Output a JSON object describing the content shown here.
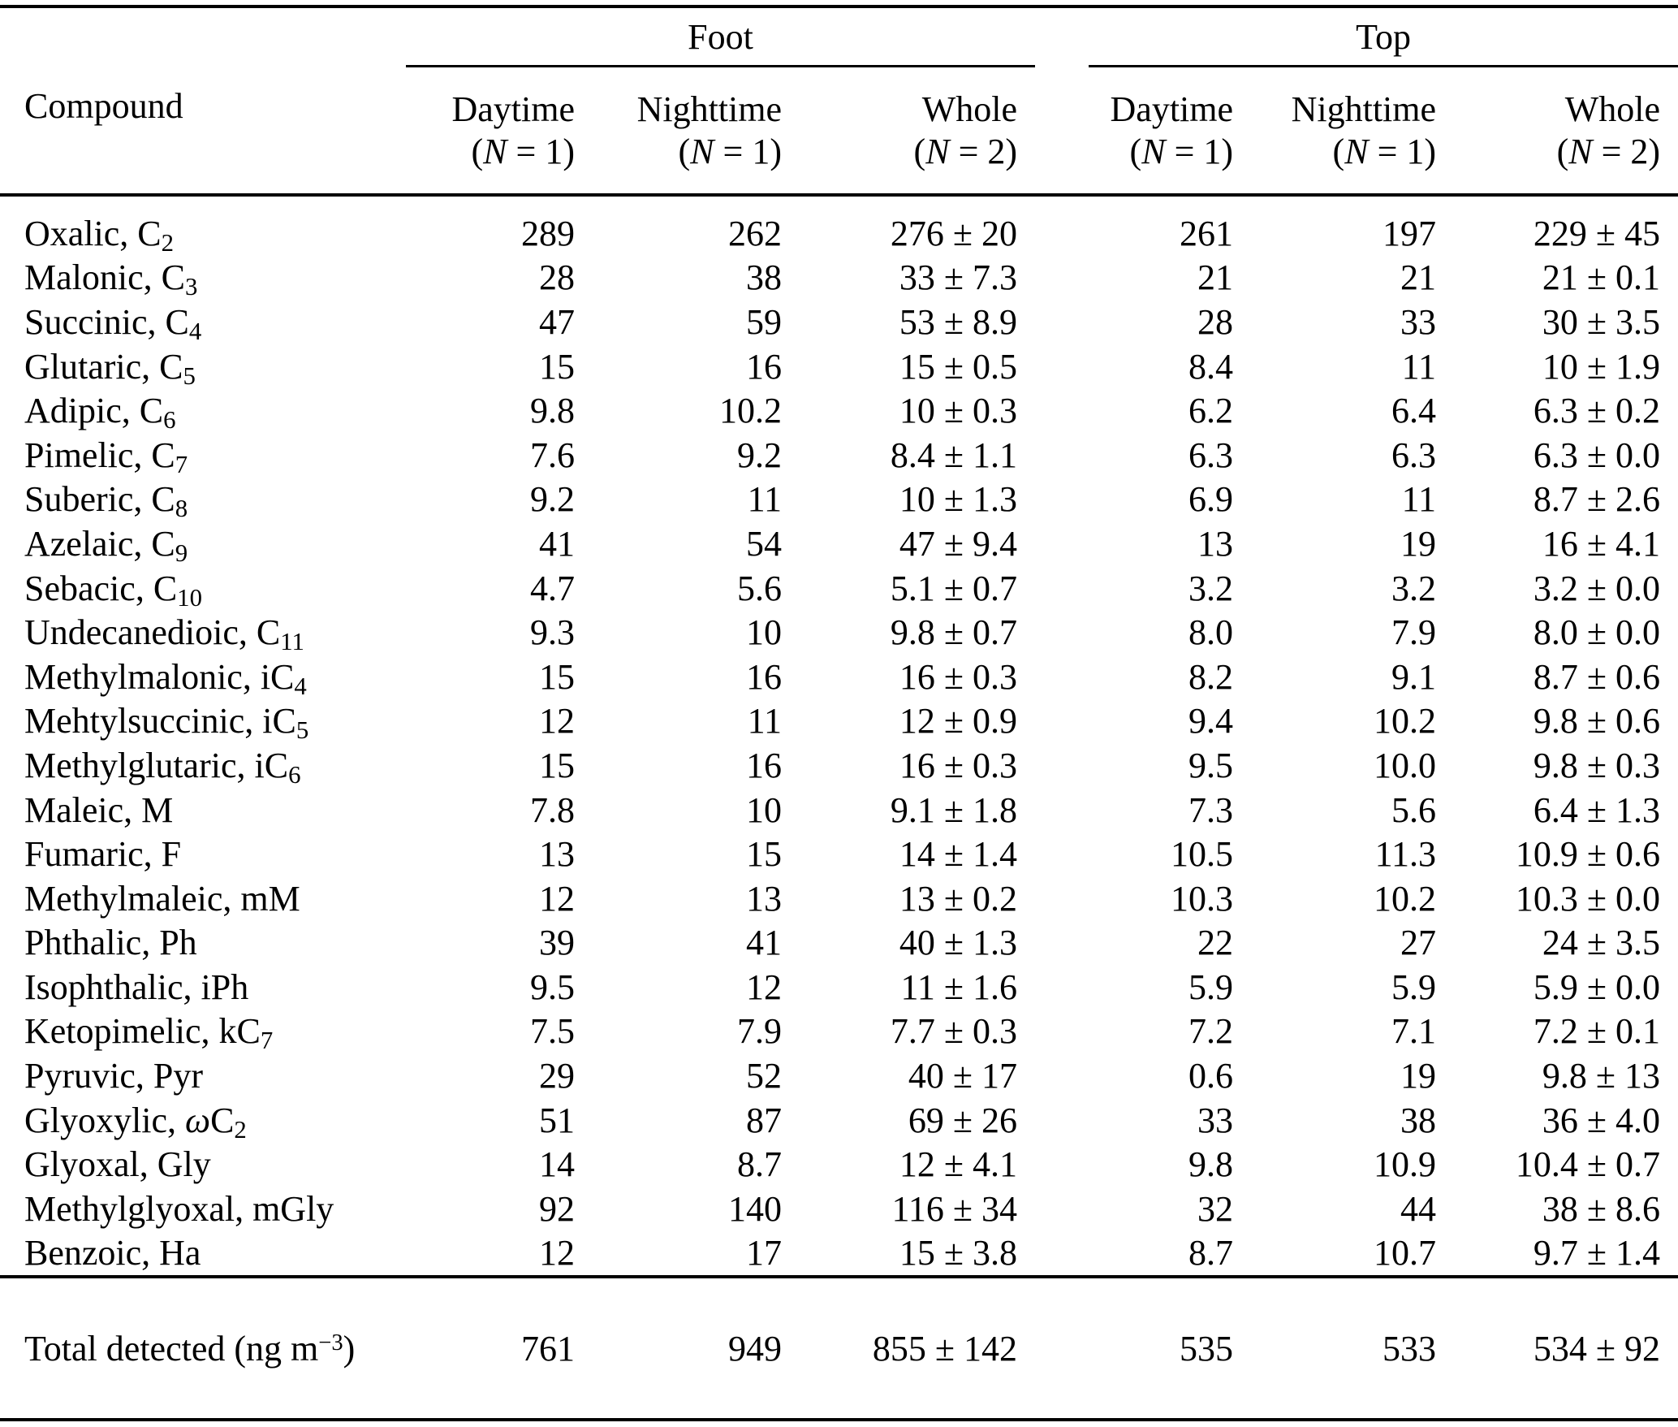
{
  "page": {
    "background_color": "#ffffff",
    "text_color": "#000000"
  },
  "table": {
    "header": {
      "compound_label": "Compound",
      "foot_group_label": "Foot",
      "top_group_label": "Top",
      "subcolumns": [
        {
          "label": "Daytime",
          "n": [
            {
              "t": "("
            },
            {
              "t": "N",
              "style": "italic"
            },
            {
              "t": " = 1)"
            }
          ]
        },
        {
          "label": "Nighttime",
          "n": [
            {
              "t": "("
            },
            {
              "t": "N",
              "style": "italic"
            },
            {
              "t": " = 1)"
            }
          ]
        },
        {
          "label": "Whole",
          "n": [
            {
              "t": "("
            },
            {
              "t": "N",
              "style": "italic"
            },
            {
              "t": " = 2)"
            }
          ]
        },
        {
          "label": "Daytime",
          "n": [
            {
              "t": "("
            },
            {
              "t": "N",
              "style": "italic"
            },
            {
              "t": " = 1)"
            }
          ]
        },
        {
          "label": "Nighttime",
          "n": [
            {
              "t": "("
            },
            {
              "t": "N",
              "style": "italic"
            },
            {
              "t": " = 1)"
            }
          ]
        },
        {
          "label": "Whole",
          "n": [
            {
              "t": "("
            },
            {
              "t": "N",
              "style": "italic"
            },
            {
              "t": " = 2)"
            }
          ]
        }
      ]
    },
    "rows": [
      {
        "compound": [
          {
            "t": "Oxalic, C"
          },
          {
            "t": "2",
            "style": "sub"
          }
        ],
        "values": [
          "289",
          "262",
          "276 ± 20",
          "261",
          "197",
          "229 ± 45"
        ]
      },
      {
        "compound": [
          {
            "t": "Malonic, C"
          },
          {
            "t": "3",
            "style": "sub"
          }
        ],
        "values": [
          "28",
          "38",
          "33 ± 7.3",
          "21",
          "21",
          "21 ± 0.1"
        ]
      },
      {
        "compound": [
          {
            "t": "Succinic, C"
          },
          {
            "t": "4",
            "style": "sub"
          }
        ],
        "values": [
          "47",
          "59",
          "53 ± 8.9",
          "28",
          "33",
          "30 ± 3.5"
        ]
      },
      {
        "compound": [
          {
            "t": "Glutaric, C"
          },
          {
            "t": "5",
            "style": "sub"
          }
        ],
        "values": [
          "15",
          "16",
          "15 ± 0.5",
          "8.4",
          "11",
          "10 ± 1.9"
        ]
      },
      {
        "compound": [
          {
            "t": "Adipic, C"
          },
          {
            "t": "6",
            "style": "sub"
          }
        ],
        "values": [
          "9.8",
          "10.2",
          "10 ± 0.3",
          "6.2",
          "6.4",
          "6.3 ± 0.2"
        ]
      },
      {
        "compound": [
          {
            "t": "Pimelic, C"
          },
          {
            "t": "7",
            "style": "sub"
          }
        ],
        "values": [
          "7.6",
          "9.2",
          "8.4 ± 1.1",
          "6.3",
          "6.3",
          "6.3 ± 0.0"
        ]
      },
      {
        "compound": [
          {
            "t": "Suberic, C"
          },
          {
            "t": "8",
            "style": "sub"
          }
        ],
        "values": [
          "9.2",
          "11",
          "10 ± 1.3",
          "6.9",
          "11",
          "8.7 ± 2.6"
        ]
      },
      {
        "compound": [
          {
            "t": "Azelaic, C"
          },
          {
            "t": "9",
            "style": "sub"
          }
        ],
        "values": [
          "41",
          "54",
          "47 ± 9.4",
          "13",
          "19",
          "16 ± 4.1"
        ]
      },
      {
        "compound": [
          {
            "t": "Sebacic, C"
          },
          {
            "t": "10",
            "style": "sub"
          }
        ],
        "values": [
          "4.7",
          "5.6",
          "5.1 ± 0.7",
          "3.2",
          "3.2",
          "3.2 ± 0.0"
        ]
      },
      {
        "compound": [
          {
            "t": "Undecanedioic, C"
          },
          {
            "t": "11",
            "style": "sub"
          }
        ],
        "values": [
          "9.3",
          "10",
          "9.8 ± 0.7",
          "8.0",
          "7.9",
          "8.0 ± 0.0"
        ]
      },
      {
        "compound": [
          {
            "t": "Methylmalonic, iC"
          },
          {
            "t": "4",
            "style": "sub"
          }
        ],
        "values": [
          "15",
          "16",
          "16 ± 0.3",
          "8.2",
          "9.1",
          "8.7 ± 0.6"
        ]
      },
      {
        "compound": [
          {
            "t": "Mehtylsuccinic, iC"
          },
          {
            "t": "5",
            "style": "sub"
          }
        ],
        "values": [
          "12",
          "11",
          "12 ± 0.9",
          "9.4",
          "10.2",
          "9.8 ± 0.6"
        ]
      },
      {
        "compound": [
          {
            "t": "Methylglutaric, iC"
          },
          {
            "t": "6",
            "style": "sub"
          }
        ],
        "values": [
          "15",
          "16",
          "16 ± 0.3",
          "9.5",
          "10.0",
          "9.8 ± 0.3"
        ]
      },
      {
        "compound": [
          {
            "t": "Maleic, M"
          }
        ],
        "values": [
          "7.8",
          "10",
          "9.1 ± 1.8",
          "7.3",
          "5.6",
          "6.4 ± 1.3"
        ]
      },
      {
        "compound": [
          {
            "t": "Fumaric, F"
          }
        ],
        "values": [
          "13",
          "15",
          "14 ± 1.4",
          "10.5",
          "11.3",
          "10.9 ± 0.6"
        ]
      },
      {
        "compound": [
          {
            "t": "Methylmaleic, mM"
          }
        ],
        "values": [
          "12",
          "13",
          "13 ± 0.2",
          "10.3",
          "10.2",
          "10.3 ± 0.0"
        ]
      },
      {
        "compound": [
          {
            "t": "Phthalic, Ph"
          }
        ],
        "values": [
          "39",
          "41",
          "40 ± 1.3",
          "22",
          "27",
          "24 ± 3.5"
        ]
      },
      {
        "compound": [
          {
            "t": "Isophthalic, iPh"
          }
        ],
        "values": [
          "9.5",
          "12",
          "11 ± 1.6",
          "5.9",
          "5.9",
          "5.9 ± 0.0"
        ]
      },
      {
        "compound": [
          {
            "t": "Ketopimelic, kC"
          },
          {
            "t": "7",
            "style": "sub"
          }
        ],
        "values": [
          "7.5",
          "7.9",
          "7.7 ± 0.3",
          "7.2",
          "7.1",
          "7.2 ± 0.1"
        ]
      },
      {
        "compound": [
          {
            "t": "Pyruvic, Pyr"
          }
        ],
        "values": [
          "29",
          "52",
          "40 ± 17",
          "0.6",
          "19",
          "9.8 ± 13"
        ]
      },
      {
        "compound": [
          {
            "t": "Glyoxylic, "
          },
          {
            "t": "ω",
            "style": "italic"
          },
          {
            "t": "C"
          },
          {
            "t": "2",
            "style": "sub"
          }
        ],
        "values": [
          "51",
          "87",
          "69 ± 26",
          "33",
          "38",
          "36 ± 4.0"
        ]
      },
      {
        "compound": [
          {
            "t": "Glyoxal, Gly"
          }
        ],
        "values": [
          "14",
          "8.7",
          "12 ± 4.1",
          "9.8",
          "10.9",
          "10.4 ± 0.7"
        ]
      },
      {
        "compound": [
          {
            "t": "Methylglyoxal, mGly"
          }
        ],
        "values": [
          "92",
          "140",
          "116 ± 34",
          "32",
          "44",
          "38 ± 8.6"
        ]
      },
      {
        "compound": [
          {
            "t": "Benzoic, Ha"
          }
        ],
        "values": [
          "12",
          "17",
          "15 ± 3.8",
          "8.7",
          "10.7",
          "9.7 ± 1.4"
        ]
      }
    ],
    "total": {
      "compound": [
        {
          "t": "Total detected (ng m"
        },
        {
          "t": "−3",
          "style": "sup"
        },
        {
          "t": ")"
        }
      ],
      "values": [
        "761",
        "949",
        "855 ± 142",
        "535",
        "533",
        "534 ± 92"
      ]
    }
  }
}
